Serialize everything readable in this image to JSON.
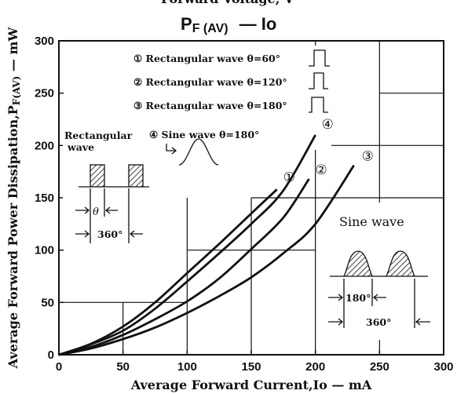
{
  "header": {
    "top_partial": "Forward Voltage, V",
    "title": "P",
    "title_sub": "F (AV)",
    "title_tail": "— Io"
  },
  "chart_data": {
    "type": "line",
    "title": "PF(AV) — Io",
    "xlabel": "Average Forward Current,Io — mA",
    "ylabel": "Average Forward Power Dissipation,P",
    "ylabel_sub": "F(AV)",
    "ylabel_tail": " — mW",
    "xlim": [
      0,
      300
    ],
    "ylim": [
      0,
      300
    ],
    "x_ticks": [
      0,
      50,
      100,
      150,
      200,
      250,
      300
    ],
    "y_ticks": [
      0,
      50,
      100,
      150,
      200,
      250,
      300
    ],
    "grid": true,
    "legend_position": "top-center",
    "series": [
      {
        "name": "① Rectangular wave θ=60°",
        "label": "①",
        "x": [
          0,
          25,
          50,
          75,
          100,
          125,
          150,
          170
        ],
        "y": [
          0,
          10.5,
          27,
          50,
          78,
          106,
          135,
          158
        ]
      },
      {
        "name": "② Rectangular wave θ=120°",
        "label": "②",
        "x": [
          0,
          25,
          50,
          75,
          100,
          125,
          150,
          175,
          195
        ],
        "y": [
          0,
          7.5,
          19,
          34,
          51,
          73,
          101,
          131,
          168
        ]
      },
      {
        "name": "③ Rectangular wave θ=180°",
        "label": "③",
        "x": [
          0,
          25,
          50,
          75,
          100,
          125,
          150,
          175,
          200,
          230
        ],
        "y": [
          0,
          6,
          15,
          26,
          40,
          56,
          74,
          97,
          125,
          181
        ]
      },
      {
        "name": "④ Sine wave θ=180°",
        "label": "④",
        "x": [
          0,
          25,
          50,
          75,
          100,
          125,
          150,
          175,
          200
        ],
        "y": [
          0,
          10,
          23,
          44,
          70,
          97,
          125,
          157,
          210
        ]
      }
    ]
  },
  "annotations": {
    "rect_title_1": "Rectangular",
    "rect_title_2": "wave",
    "rect_theta": "θ",
    "rect_period": "360°",
    "sine_title": "Sine wave",
    "sine_conduction": "180°",
    "sine_period": "360°"
  }
}
